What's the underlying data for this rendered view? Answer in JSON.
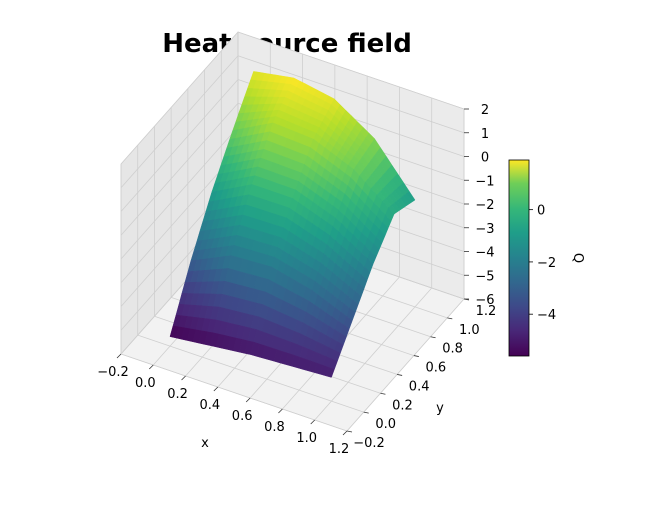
{
  "chart_data": {
    "type": "surface",
    "title": "Heat source field",
    "xlabel": "x",
    "ylabel": "y",
    "zlabel": "",
    "colorbar_label": "Q",
    "colormap": "viridis",
    "xlim": [
      -0.2,
      1.2
    ],
    "ylim": [
      -0.2,
      1.2
    ],
    "zlim": [
      -6,
      2
    ],
    "x_ticks": [
      "−0.2",
      "0.0",
      "0.2",
      "0.4",
      "0.6",
      "0.8",
      "1.0",
      "1.2"
    ],
    "y_ticks": [
      "−0.2",
      "0.0",
      "0.2",
      "0.4",
      "0.6",
      "0.8",
      "1.0",
      "1.2"
    ],
    "z_ticks": [
      "−6",
      "−5",
      "−4",
      "−3",
      "−2",
      "−1",
      "0",
      "1",
      "2"
    ],
    "colorbar_ticks": [
      "−4",
      "−2",
      "0"
    ],
    "colorbar_range": [
      -5.6,
      1.9
    ],
    "surface_corners": {
      "x0_y0": -5.6,
      "x1_y0": -5.0,
      "x0_y1": 1.6,
      "x1_y1": -1.5
    },
    "surface_grid": {
      "x": [
        0.0,
        0.25,
        0.5,
        0.75,
        1.0
      ],
      "y": [
        0.0,
        0.25,
        0.5,
        0.75,
        1.0
      ],
      "z": [
        [
          -5.6,
          -3.4,
          -1.5,
          0.1,
          1.6
        ],
        [
          -5.4,
          -2.6,
          -0.6,
          1.0,
          1.9
        ],
        [
          -5.2,
          -2.5,
          -0.6,
          0.9,
          1.6
        ],
        [
          -5.1,
          -2.9,
          -1.2,
          0.2,
          0.5
        ],
        [
          -5.0,
          -3.6,
          -2.2,
          -1.1,
          -1.5
        ]
      ]
    },
    "grid": true
  }
}
